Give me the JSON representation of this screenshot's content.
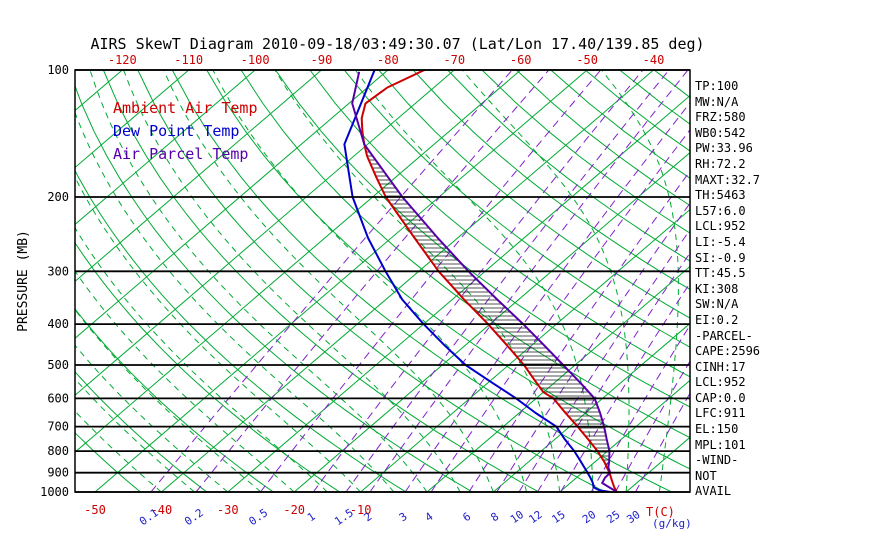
{
  "window": {
    "title": "AIRS SkewT Diagram 2010-09-18/03:49:30.07 (Lat/Lon 17.40/139.85 deg)"
  },
  "legend": {
    "ambient": "Ambient Air Temp",
    "dew": "Dew Point Temp",
    "parcel": "Air Parcel Temp"
  },
  "stats": [
    "TP:100",
    "MW:N/A",
    "FRZ:580",
    "WB0:542",
    "PW:33.96",
    "RH:72.2",
    "MAXT:32.7",
    "TH:5463",
    "L57:6.0",
    "LCL:952",
    "LI:-5.4",
    "SI:-0.9",
    "TT:45.5",
    "KI:308",
    "SW:N/A",
    "EI:0.2",
    "-PARCEL-",
    "CAPE:2596",
    "CINH:17",
    "LCL:952",
    "CAP:0.0",
    "LFC:911",
    "EL:150",
    "MPL:101",
    "-WIND-",
    "NOT",
    "AVAIL"
  ],
  "colors": {
    "background": "#ffffff",
    "ambient": "#cc0000",
    "dew": "#0000cc",
    "parcel": "#5500aa",
    "isotherm": "#00aa33",
    "mixing_ratio": "#8022cc",
    "pressure_line": "#000000",
    "hatch": "#1a1a1a",
    "axis_label_blue": "#2020cc",
    "text": "#000000"
  },
  "chart_data": {
    "type": "line",
    "variant": "skew-t-log-p",
    "title": "AIRS SkewT Diagram 2010-09-18/03:49:30.07 (Lat/Lon 17.40/139.85 deg)",
    "x_axis": {
      "unit_label": "T(C)",
      "top_tick_labels_c": [
        -120,
        -110,
        -100,
        -90,
        -80,
        -70,
        -60,
        -50,
        -40
      ],
      "bottom_tick_labels_c": [
        -50,
        -40,
        -30,
        -20,
        -10
      ]
    },
    "y_axis": {
      "label": "PRESSURE (MB)",
      "scale": "log",
      "range_mb": [
        100,
        1000
      ],
      "tick_labels_mb": [
        100,
        200,
        300,
        400,
        500,
        600,
        700,
        800,
        900,
        1000
      ]
    },
    "isotherm_step_c": 10,
    "mixing_ratio_lines_gkg": [
      0.1,
      0.2,
      0.5,
      1,
      1.5,
      2,
      3,
      4,
      6,
      8,
      10,
      12,
      15,
      20,
      25,
      30
    ],
    "mixing_ratio_unit_label": "(g/kg)",
    "cape_hatch_between": [
      "parcel",
      "ambient"
    ],
    "series": [
      {
        "name": "Ambient Air Temp",
        "key": "ambient",
        "points_p_t": [
          [
            1000,
            28.6
          ],
          [
            975,
            27.4
          ],
          [
            950,
            26.3
          ],
          [
            925,
            25.2
          ],
          [
            900,
            24.1
          ],
          [
            875,
            22.8
          ],
          [
            850,
            21.5
          ],
          [
            800,
            18.5
          ],
          [
            750,
            15.0
          ],
          [
            700,
            11.2
          ],
          [
            650,
            7.0
          ],
          [
            600,
            2.6
          ],
          [
            580,
            0.0
          ],
          [
            550,
            -2.8
          ],
          [
            500,
            -7.7
          ],
          [
            450,
            -13.6
          ],
          [
            400,
            -20.3
          ],
          [
            350,
            -28.2
          ],
          [
            300,
            -37.0
          ],
          [
            250,
            -46.5
          ],
          [
            200,
            -58.0
          ],
          [
            180,
            -62.8
          ],
          [
            160,
            -68.0
          ],
          [
            150,
            -70.5
          ],
          [
            140,
            -73.0
          ],
          [
            130,
            -75.5
          ],
          [
            120,
            -77.5
          ],
          [
            110,
            -77.0
          ],
          [
            100,
            -74.5
          ]
        ]
      },
      {
        "name": "Dew Point Temp",
        "key": "dew",
        "points_p_t": [
          [
            1000,
            27.6
          ],
          [
            990,
            25.6
          ],
          [
            975,
            24.3
          ],
          [
            950,
            23.3
          ],
          [
            925,
            22.1
          ],
          [
            900,
            20.8
          ],
          [
            875,
            19.4
          ],
          [
            850,
            18.0
          ],
          [
            800,
            15.0
          ],
          [
            750,
            11.5
          ],
          [
            700,
            8.0
          ],
          [
            650,
            2.5
          ],
          [
            600,
            -3.0
          ],
          [
            550,
            -9.5
          ],
          [
            500,
            -16.5
          ],
          [
            450,
            -23.0
          ],
          [
            400,
            -30.0
          ],
          [
            350,
            -37.5
          ],
          [
            300,
            -45.0
          ],
          [
            250,
            -53.5
          ],
          [
            200,
            -63.0
          ],
          [
            150,
            -73.5
          ],
          [
            100,
            -82.0
          ]
        ]
      },
      {
        "name": "Air Parcel Temp",
        "key": "parcel",
        "points_p_t": [
          [
            1000,
            28.6
          ],
          [
            952,
            24.8
          ],
          [
            925,
            24.3
          ],
          [
            900,
            24.2
          ],
          [
            875,
            23.0
          ],
          [
            850,
            22.2
          ],
          [
            800,
            20.3
          ],
          [
            750,
            17.8
          ],
          [
            700,
            15.2
          ],
          [
            650,
            12.2
          ],
          [
            600,
            8.8
          ],
          [
            550,
            3.8
          ],
          [
            500,
            -1.8
          ],
          [
            450,
            -8.0
          ],
          [
            400,
            -15.0
          ],
          [
            350,
            -23.2
          ],
          [
            300,
            -32.5
          ],
          [
            250,
            -43.0
          ],
          [
            200,
            -55.5
          ],
          [
            150,
            -70.5
          ],
          [
            120,
            -79.5
          ],
          [
            101,
            -84.0
          ]
        ]
      }
    ]
  }
}
